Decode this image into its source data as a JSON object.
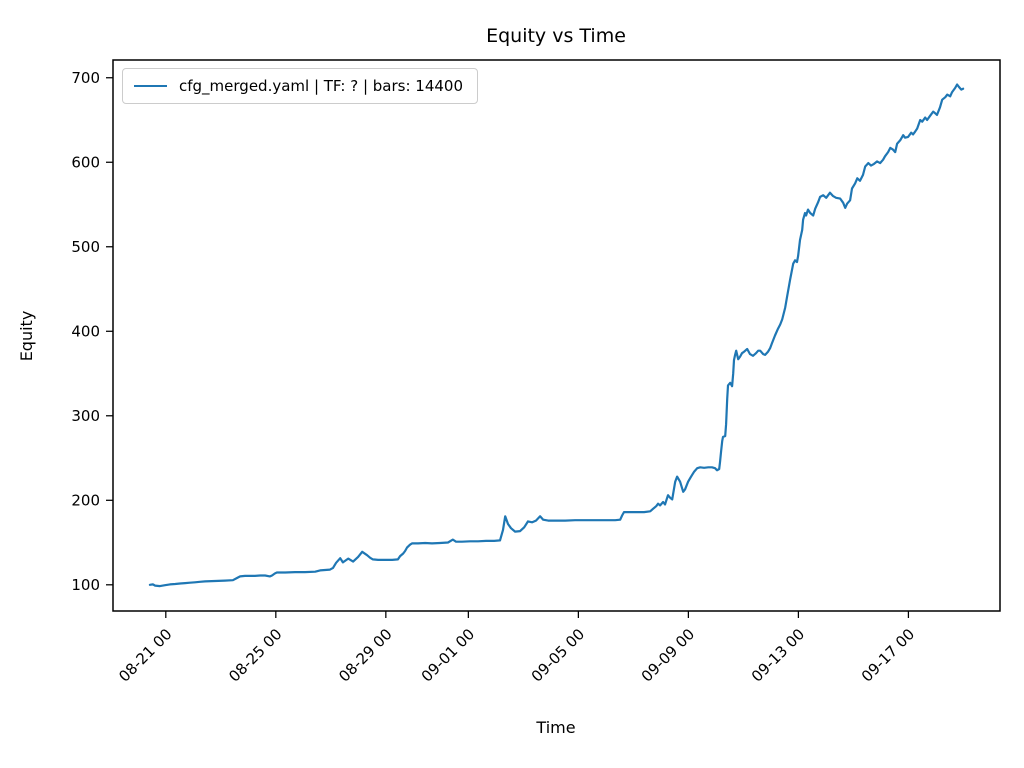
{
  "figure": {
    "background": "#ffffff",
    "line_color": "#1f77b4",
    "spine_color": "#000000"
  },
  "chart_data": {
    "type": "line",
    "title": "Equity vs Time",
    "xlabel": "Time",
    "ylabel": "Equity",
    "grid": false,
    "legend_position": "upper left",
    "x_unit": "days since 08-21 00:00",
    "xlim": [
      -1.92,
      30.33
    ],
    "ylim": [
      69,
      721
    ],
    "x_ticks": {
      "values": [
        0,
        4,
        8,
        11,
        15,
        19,
        23,
        27
      ],
      "labels": [
        "08-21 00",
        "08-25 00",
        "08-29 00",
        "09-01 00",
        "09-05 00",
        "09-09 00",
        "09-13 00",
        "09-17 00"
      ]
    },
    "y_ticks": [
      100,
      200,
      300,
      400,
      500,
      600,
      700
    ],
    "series": [
      {
        "name": "cfg_merged.yaml | TF: ? | bars: 14400",
        "color": "#1f77b4",
        "points": [
          [
            -0.58,
            100
          ],
          [
            -0.47,
            100.5
          ],
          [
            -0.39,
            99
          ],
          [
            -0.21,
            98.5
          ],
          [
            -0.03,
            99.5
          ],
          [
            0.15,
            100.5
          ],
          [
            0.34,
            101
          ],
          [
            0.52,
            101.5
          ],
          [
            0.7,
            102
          ],
          [
            0.88,
            102.5
          ],
          [
            1.06,
            103
          ],
          [
            1.24,
            103.5
          ],
          [
            1.43,
            104
          ],
          [
            1.79,
            104.5
          ],
          [
            2.15,
            105
          ],
          [
            2.44,
            105.5
          ],
          [
            2.59,
            108
          ],
          [
            2.7,
            110
          ],
          [
            2.88,
            110.5
          ],
          [
            3.06,
            110.5
          ],
          [
            3.24,
            110.5
          ],
          [
            3.43,
            111
          ],
          [
            3.61,
            111
          ],
          [
            3.79,
            110
          ],
          [
            3.86,
            111
          ],
          [
            3.97,
            113.5
          ],
          [
            4.04,
            114.5
          ],
          [
            4.34,
            114.5
          ],
          [
            4.7,
            115
          ],
          [
            5.06,
            115
          ],
          [
            5.43,
            115.5
          ],
          [
            5.61,
            117
          ],
          [
            5.79,
            117.5
          ],
          [
            5.97,
            118
          ],
          [
            6.08,
            120
          ],
          [
            6.19,
            126
          ],
          [
            6.34,
            131.5
          ],
          [
            6.44,
            126.5
          ],
          [
            6.63,
            131
          ],
          [
            6.81,
            127.5
          ],
          [
            6.99,
            133
          ],
          [
            7.14,
            139
          ],
          [
            7.32,
            135
          ],
          [
            7.43,
            132
          ],
          [
            7.53,
            130
          ],
          [
            7.72,
            129.5
          ],
          [
            7.97,
            129.5
          ],
          [
            8.23,
            129.5
          ],
          [
            8.44,
            130
          ],
          [
            8.52,
            134
          ],
          [
            8.63,
            137
          ],
          [
            8.7,
            140
          ],
          [
            8.77,
            144
          ],
          [
            8.88,
            147.5
          ],
          [
            8.95,
            149
          ],
          [
            9.17,
            149
          ],
          [
            9.43,
            149.5
          ],
          [
            9.68,
            149
          ],
          [
            9.97,
            149.5
          ],
          [
            10.26,
            150
          ],
          [
            10.44,
            153.5
          ],
          [
            10.55,
            151
          ],
          [
            10.77,
            151
          ],
          [
            11.06,
            151.5
          ],
          [
            11.35,
            151.5
          ],
          [
            11.64,
            152
          ],
          [
            11.94,
            152
          ],
          [
            12.15,
            152.5
          ],
          [
            12.26,
            165
          ],
          [
            12.34,
            181
          ],
          [
            12.44,
            172
          ],
          [
            12.55,
            167
          ],
          [
            12.7,
            163
          ],
          [
            12.88,
            163.5
          ],
          [
            13.03,
            168
          ],
          [
            13.17,
            175
          ],
          [
            13.32,
            174
          ],
          [
            13.46,
            176
          ],
          [
            13.61,
            181
          ],
          [
            13.72,
            177
          ],
          [
            13.9,
            176
          ],
          [
            14.15,
            176
          ],
          [
            14.52,
            176
          ],
          [
            14.88,
            176.5
          ],
          [
            15.24,
            176.5
          ],
          [
            15.61,
            176.5
          ],
          [
            15.97,
            176.5
          ],
          [
            16.34,
            176.5
          ],
          [
            16.52,
            177
          ],
          [
            16.59,
            182
          ],
          [
            16.66,
            186
          ],
          [
            16.88,
            186
          ],
          [
            17.14,
            186
          ],
          [
            17.39,
            186
          ],
          [
            17.61,
            187
          ],
          [
            17.72,
            190
          ],
          [
            17.83,
            193
          ],
          [
            17.9,
            196
          ],
          [
            17.97,
            194
          ],
          [
            18.08,
            198
          ],
          [
            18.15,
            195
          ],
          [
            18.26,
            206
          ],
          [
            18.34,
            203
          ],
          [
            18.41,
            201
          ],
          [
            18.52,
            222
          ],
          [
            18.59,
            228
          ],
          [
            18.7,
            222
          ],
          [
            18.81,
            210
          ],
          [
            18.88,
            213
          ],
          [
            18.99,
            222
          ],
          [
            19.1,
            228
          ],
          [
            19.21,
            234
          ],
          [
            19.32,
            238
          ],
          [
            19.43,
            239
          ],
          [
            19.57,
            238.5
          ],
          [
            19.72,
            239
          ],
          [
            19.86,
            239
          ],
          [
            19.97,
            238
          ],
          [
            20.04,
            235.5
          ],
          [
            20.12,
            237
          ],
          [
            20.15,
            245
          ],
          [
            20.19,
            258
          ],
          [
            20.23,
            270
          ],
          [
            20.26,
            275
          ],
          [
            20.34,
            276
          ],
          [
            20.37,
            290
          ],
          [
            20.41,
            320
          ],
          [
            20.44,
            336
          ],
          [
            20.52,
            339
          ],
          [
            20.59,
            335
          ],
          [
            20.63,
            350
          ],
          [
            20.66,
            366
          ],
          [
            20.7,
            372
          ],
          [
            20.74,
            377
          ],
          [
            20.81,
            367
          ],
          [
            20.88,
            370
          ],
          [
            20.95,
            374
          ],
          [
            21.03,
            376
          ],
          [
            21.14,
            379
          ],
          [
            21.24,
            373
          ],
          [
            21.35,
            371
          ],
          [
            21.46,
            374
          ],
          [
            21.54,
            377
          ],
          [
            21.61,
            377
          ],
          [
            21.72,
            373
          ],
          [
            21.79,
            372
          ],
          [
            21.9,
            376
          ],
          [
            21.97,
            380
          ],
          [
            22.04,
            386
          ],
          [
            22.15,
            395
          ],
          [
            22.26,
            403
          ],
          [
            22.34,
            408
          ],
          [
            22.41,
            414
          ],
          [
            22.52,
            428
          ],
          [
            22.59,
            441
          ],
          [
            22.7,
            461
          ],
          [
            22.81,
            480
          ],
          [
            22.88,
            484
          ],
          [
            22.95,
            482
          ],
          [
            22.99,
            489
          ],
          [
            23.06,
            508
          ],
          [
            23.14,
            520
          ],
          [
            23.17,
            532
          ],
          [
            23.24,
            540
          ],
          [
            23.28,
            537
          ],
          [
            23.35,
            544
          ],
          [
            23.43,
            540
          ],
          [
            23.54,
            537
          ],
          [
            23.61,
            545
          ],
          [
            23.72,
            553
          ],
          [
            23.79,
            559
          ],
          [
            23.9,
            561
          ],
          [
            24.01,
            558
          ],
          [
            24.15,
            564
          ],
          [
            24.26,
            560
          ],
          [
            24.37,
            558
          ],
          [
            24.52,
            557
          ],
          [
            24.63,
            552
          ],
          [
            24.7,
            546
          ],
          [
            24.77,
            551
          ],
          [
            24.88,
            555
          ],
          [
            24.95,
            569
          ],
          [
            25.06,
            575
          ],
          [
            25.14,
            581
          ],
          [
            25.24,
            578
          ],
          [
            25.35,
            585
          ],
          [
            25.43,
            595
          ],
          [
            25.54,
            599
          ],
          [
            25.64,
            596
          ],
          [
            25.75,
            598
          ],
          [
            25.86,
            601
          ],
          [
            25.97,
            599
          ],
          [
            26.08,
            603
          ],
          [
            26.15,
            607
          ],
          [
            26.26,
            612
          ],
          [
            26.34,
            617
          ],
          [
            26.44,
            615
          ],
          [
            26.52,
            612
          ],
          [
            26.59,
            622
          ],
          [
            26.7,
            626
          ],
          [
            26.81,
            632
          ],
          [
            26.88,
            629
          ],
          [
            26.99,
            630
          ],
          [
            27.1,
            635
          ],
          [
            27.17,
            633
          ],
          [
            27.24,
            636
          ],
          [
            27.32,
            640
          ],
          [
            27.43,
            650
          ],
          [
            27.5,
            648
          ],
          [
            27.61,
            653
          ],
          [
            27.68,
            650
          ],
          [
            27.79,
            655
          ],
          [
            27.9,
            660
          ],
          [
            27.97,
            658
          ],
          [
            28.04,
            656
          ],
          [
            28.15,
            665
          ],
          [
            28.23,
            674
          ],
          [
            28.34,
            677
          ],
          [
            28.41,
            680
          ],
          [
            28.52,
            678
          ],
          [
            28.59,
            683
          ],
          [
            28.7,
            688
          ],
          [
            28.77,
            692
          ],
          [
            28.84,
            689
          ],
          [
            28.92,
            686
          ],
          [
            28.99,
            687
          ]
        ]
      }
    ]
  }
}
